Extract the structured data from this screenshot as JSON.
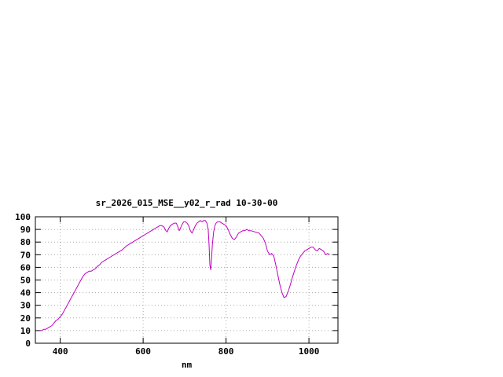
{
  "window": {
    "background": "#ffffff"
  },
  "chart_data": {
    "type": "line",
    "title": "sr_2026_015_MSE__y02_r_rad 10-30-00",
    "xlabel": "nm",
    "ylabel": "",
    "xlim": [
      340,
      1070
    ],
    "ylim": [
      0,
      100
    ],
    "xticks": [
      400,
      600,
      800,
      1000
    ],
    "yticks": [
      0,
      10,
      20,
      30,
      40,
      50,
      60,
      70,
      80,
      90,
      100
    ],
    "grid": true,
    "legend": "none",
    "colors": {
      "line": "#c000c0",
      "grid": "#a8a8a8",
      "axis": "#000000",
      "text": "#000000"
    },
    "series": [
      {
        "name": "sr_2026_015_MSE__y02_r_rad",
        "x": [
          350,
          355,
          360,
          365,
          370,
          375,
          380,
          385,
          390,
          395,
          400,
          405,
          410,
          415,
          420,
          425,
          430,
          435,
          440,
          445,
          450,
          455,
          460,
          465,
          470,
          475,
          480,
          485,
          490,
          495,
          500,
          510,
          520,
          530,
          540,
          550,
          560,
          570,
          580,
          590,
          600,
          605,
          610,
          615,
          620,
          625,
          630,
          635,
          640,
          645,
          650,
          655,
          658,
          662,
          666,
          670,
          675,
          680,
          684,
          687,
          690,
          694,
          698,
          702,
          706,
          710,
          714,
          718,
          722,
          726,
          730,
          734,
          738,
          742,
          746,
          750,
          754,
          757,
          759,
          761,
          763,
          765,
          767,
          770,
          773,
          776,
          780,
          785,
          790,
          795,
          800,
          805,
          810,
          815,
          820,
          825,
          830,
          835,
          840,
          845,
          850,
          855,
          860,
          870,
          880,
          890,
          895,
          900,
          905,
          910,
          915,
          920,
          925,
          930,
          935,
          940,
          945,
          950,
          955,
          960,
          965,
          970,
          975,
          980,
          985,
          990,
          995,
          1000,
          1005,
          1010,
          1015,
          1020,
          1025,
          1030,
          1035,
          1040,
          1045,
          1050
        ],
        "y": [
          10,
          10,
          11,
          11,
          12,
          13,
          14,
          16,
          18,
          19,
          21,
          23,
          26,
          29,
          32,
          35,
          38,
          41,
          44,
          47,
          50,
          53,
          55,
          56,
          57,
          57,
          58,
          59,
          61,
          62,
          64,
          66,
          68,
          70,
          72,
          74,
          77,
          79,
          81,
          83,
          85,
          86,
          87,
          88,
          89,
          90,
          91,
          92,
          93,
          93,
          92,
          89,
          88,
          91,
          93,
          94,
          95,
          95,
          92,
          89,
          91,
          94,
          96,
          96,
          95,
          93,
          89,
          87,
          90,
          93,
          95,
          96,
          97,
          96,
          97,
          97,
          95,
          90,
          78,
          62,
          58,
          66,
          78,
          88,
          93,
          95,
          96,
          96,
          95,
          94,
          93,
          90,
          86,
          83,
          82,
          84,
          87,
          88,
          89,
          89,
          90,
          89,
          89,
          88,
          87,
          83,
          79,
          73,
          70,
          71,
          69,
          62,
          54,
          46,
          40,
          36,
          37,
          41,
          46,
          52,
          57,
          62,
          66,
          69,
          71,
          73,
          74,
          75,
          76,
          76,
          74,
          73,
          75,
          74,
          73,
          70,
          71,
          70
        ]
      }
    ]
  }
}
